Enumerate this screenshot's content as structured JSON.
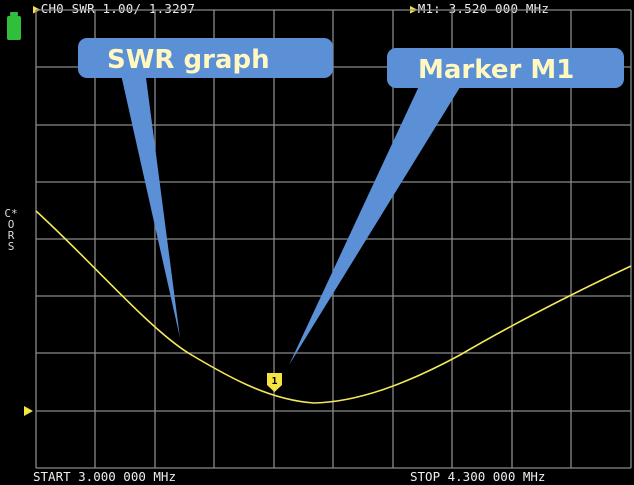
{
  "header": {
    "channel_info": "CH0 SWR 1.00/ 1.3297",
    "marker_info": "M1: 3.520 000 MHz"
  },
  "side_label": "C*\nO\nR\nS",
  "footer": {
    "start_label": "START 3.000 000 MHz",
    "stop_label": "STOP 4.300 000 MHz"
  },
  "callouts": {
    "swr_graph": "SWR graph",
    "marker_m1": "Marker M1"
  },
  "marker": {
    "label": "1"
  },
  "colors": {
    "trace": "#f2e85a",
    "grid": "#8a8a8a",
    "callout_fill": "#5b8fd6",
    "battery": "#2fbf3a"
  },
  "icons": {
    "battery": "battery-icon",
    "reference": "reference-arrow-icon"
  }
}
